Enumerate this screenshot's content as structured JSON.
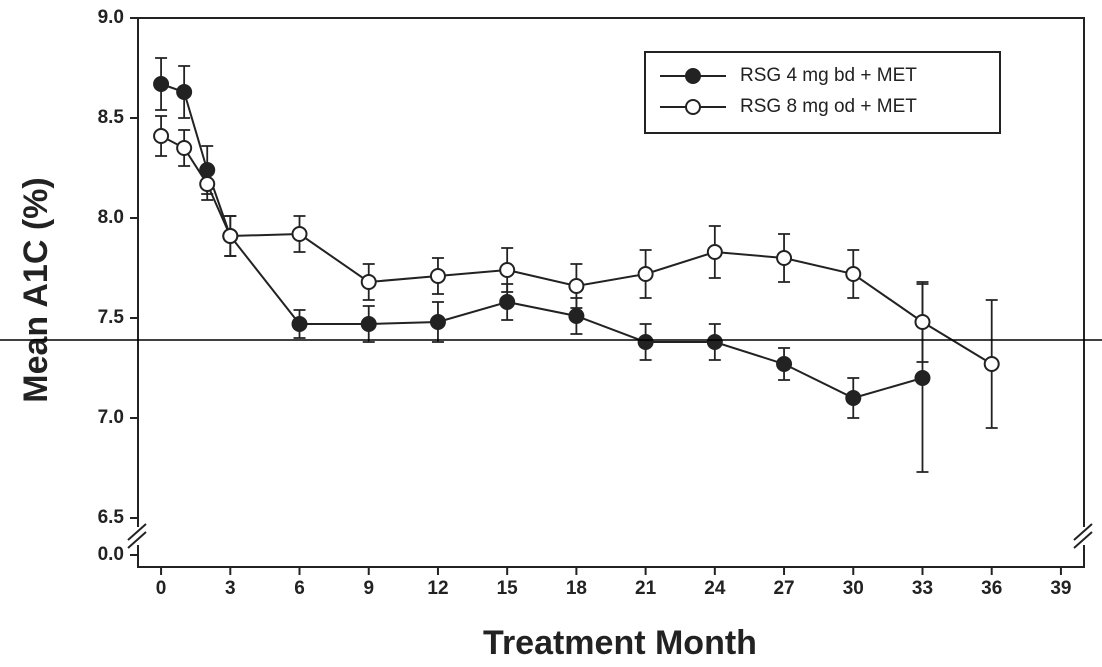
{
  "chart_data": {
    "type": "line",
    "x_label": "Treatment Month",
    "y_label": "Mean A1C (%)",
    "xlim": [
      -1,
      40
    ],
    "xticks": [
      0,
      3,
      6,
      9,
      12,
      15,
      18,
      21,
      24,
      27,
      30,
      33,
      36,
      39
    ],
    "ylim": [
      6.5,
      9.0
    ],
    "yticks": [
      {
        "value": 0,
        "label": "0.0"
      },
      {
        "value": 6.5,
        "label": "6.5"
      },
      {
        "value": 7,
        "label": "7.0"
      },
      {
        "value": 7.5,
        "label": "7.5"
      },
      {
        "value": 8,
        "label": "8.0"
      },
      {
        "value": 8.5,
        "label": "8.5"
      },
      {
        "value": 9,
        "label": "9.0"
      }
    ],
    "axis_break": true,
    "legend": "upper right",
    "series": [
      {
        "name": "RSG 4 mg bd + MET",
        "color": "#222222",
        "marker": "filled",
        "x": [
          0,
          1,
          2,
          3,
          6,
          9,
          12,
          15,
          18,
          21,
          24,
          27,
          30,
          33
        ],
        "values": [
          8.67,
          8.63,
          8.24,
          7.91,
          7.47,
          7.47,
          7.48,
          7.58,
          7.51,
          7.38,
          7.38,
          7.27,
          7.1,
          7.2
        ],
        "errors": [
          0.13,
          0.13,
          0.12,
          0.1,
          0.07,
          0.09,
          0.1,
          0.09,
          0.09,
          0.09,
          0.09,
          0.08,
          0.1,
          0.47
        ]
      },
      {
        "name": "RSG 8 mg od + MET",
        "color": "#222222",
        "marker": "open",
        "x": [
          0,
          1,
          2,
          3,
          6,
          9,
          12,
          15,
          18,
          21,
          24,
          27,
          30,
          33,
          36
        ],
        "values": [
          8.41,
          8.35,
          8.17,
          7.91,
          7.92,
          7.68,
          7.71,
          7.74,
          7.66,
          7.72,
          7.83,
          7.8,
          7.72,
          7.48,
          7.27
        ],
        "errors": [
          0.1,
          0.09,
          0.08,
          0.1,
          0.09,
          0.09,
          0.09,
          0.11,
          0.11,
          0.12,
          0.13,
          0.12,
          0.12,
          0.2,
          0.32
        ]
      }
    ]
  }
}
